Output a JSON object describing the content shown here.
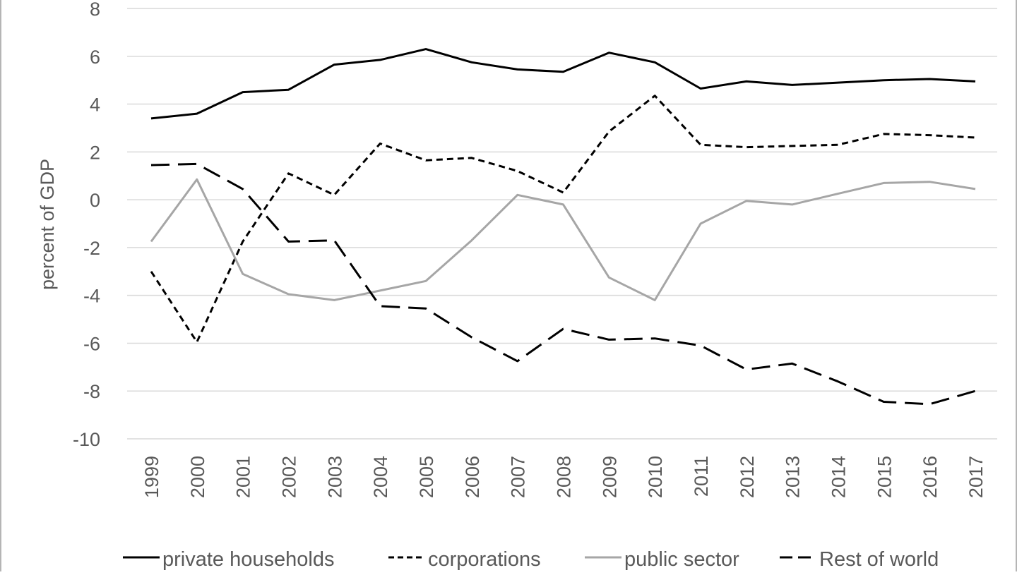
{
  "chart_data": {
    "type": "line",
    "title": "",
    "xlabel": "",
    "ylabel": "percent of GDP",
    "ylim": [
      -10,
      8
    ],
    "yticks": [
      -10,
      -8,
      -6,
      -4,
      -2,
      0,
      2,
      4,
      6,
      8
    ],
    "grid": true,
    "legend_position": "bottom",
    "categories": [
      "1999",
      "2000",
      "2001",
      "2002",
      "2003",
      "2004",
      "2005",
      "2006",
      "2007",
      "2008",
      "2009",
      "2010",
      "2011",
      "2012",
      "2013",
      "2014",
      "2015",
      "2016",
      "2017"
    ],
    "series": [
      {
        "name": "private households",
        "color": "#000000",
        "style": "solid",
        "values": [
          3.4,
          3.6,
          4.5,
          4.6,
          5.65,
          5.85,
          6.3,
          5.75,
          5.45,
          5.35,
          6.15,
          5.75,
          4.65,
          4.95,
          4.8,
          4.9,
          5.0,
          5.05,
          4.95
        ]
      },
      {
        "name": "corporations",
        "color": "#000000",
        "style": "short-dash",
        "values": [
          -3.0,
          -5.95,
          -1.75,
          1.1,
          0.2,
          2.35,
          1.65,
          1.75,
          1.2,
          0.3,
          2.85,
          4.35,
          2.3,
          2.2,
          2.25,
          2.3,
          2.75,
          2.7,
          2.6
        ]
      },
      {
        "name": "public sector",
        "color": "#a6a6a6",
        "style": "solid",
        "values": [
          -1.75,
          0.85,
          -3.1,
          -3.95,
          -4.2,
          -3.8,
          -3.4,
          -1.7,
          0.2,
          -0.2,
          -3.25,
          -4.2,
          -1.0,
          -0.05,
          -0.2,
          0.25,
          0.7,
          0.75,
          0.45
        ]
      },
      {
        "name": "Rest of world",
        "color": "#000000",
        "style": "long-dash",
        "values": [
          1.45,
          1.5,
          0.45,
          -1.75,
          -1.7,
          -4.45,
          -4.55,
          -5.75,
          -6.75,
          -5.4,
          -5.85,
          -5.8,
          -6.1,
          -7.1,
          -6.85,
          -7.6,
          -8.45,
          -8.55,
          -8.0
        ]
      }
    ]
  }
}
